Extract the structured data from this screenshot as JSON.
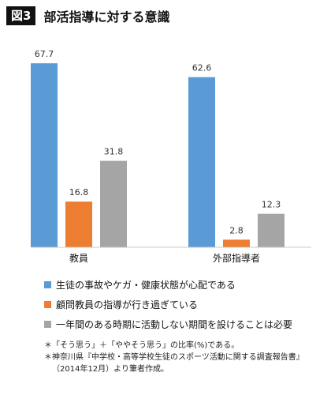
{
  "header": {
    "figure_label": "図3",
    "title": "部活指導に対する意識"
  },
  "chart_data": {
    "type": "bar",
    "categories": [
      "教員",
      "外部指導者"
    ],
    "series": [
      {
        "name": "生徒の事故やケガ・健康状態が心配である",
        "values": [
          67.7,
          62.6
        ],
        "color": "#5b9bd5"
      },
      {
        "name": "顧問教員の指導が行き過ぎている",
        "values": [
          16.8,
          2.8
        ],
        "color": "#ed7d31"
      },
      {
        "name": "一年間のある時期に活動しない期間を設けることは必要",
        "values": [
          31.8,
          12.3
        ],
        "color": "#a5a5a5"
      }
    ],
    "value_labels": [
      [
        "67.7",
        "62.6"
      ],
      [
        "16.8",
        "2.8"
      ],
      [
        "31.8",
        "12.3"
      ]
    ],
    "ylim": [
      0,
      75
    ],
    "grid": false,
    "legend_position": "bottom"
  },
  "notes": {
    "line1": "＊「そう思う」＋「ややそう思う」の比率(%)である。",
    "line2": "＊神奈川県『中学校・高等学校生徒のスポーツ活動に関する調査報告書』",
    "line3": "（2014年12月）より筆者作成。"
  }
}
